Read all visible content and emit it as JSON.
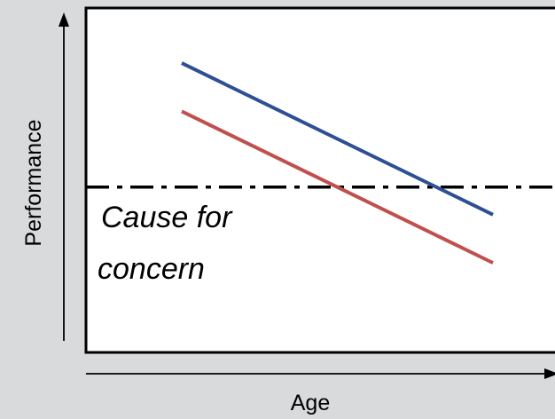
{
  "chart_data": {
    "type": "line",
    "title": "",
    "xlabel": "Age",
    "ylabel": "Performance",
    "xlim": [
      0,
      100
    ],
    "ylim": [
      0,
      100
    ],
    "grid": false,
    "legend": "none",
    "series": [
      {
        "color": "#2e4f94",
        "x": [
          20,
          85
        ],
        "y": [
          84,
          40
        ]
      },
      {
        "color": "#c0504d",
        "x": [
          20,
          85
        ],
        "y": [
          70,
          26
        ]
      }
    ],
    "threshold": {
      "y": 48,
      "style": "dash-dot",
      "color": "#000000"
    },
    "annotation": {
      "lines": [
        "Cause for",
        "concern"
      ]
    }
  }
}
